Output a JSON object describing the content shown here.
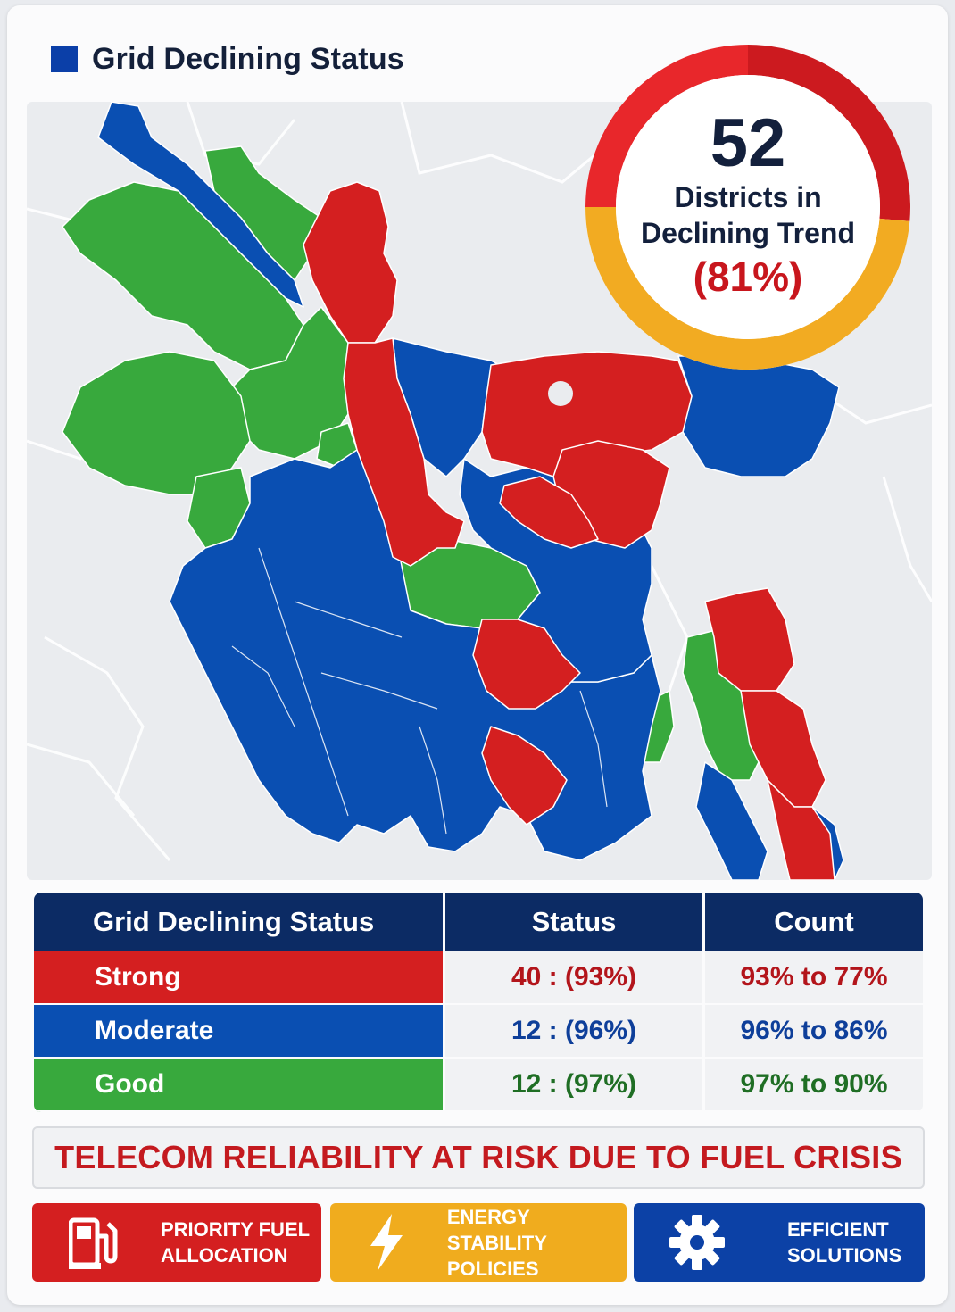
{
  "header": {
    "title": "Grid Declining Status",
    "square_color": "#0b3fa8"
  },
  "summary": {
    "count": "52",
    "label_line1": "Districts in",
    "label_line2": "Declining Trend",
    "percent": "(81%)",
    "ring_colors": [
      "#e8272b",
      "#cc1a1f",
      "#f2ab22"
    ]
  },
  "map": {
    "colors": {
      "strong": "#d41f20",
      "moderate": "#0a4fb2",
      "good": "#38a93d",
      "background": "#eaecef"
    }
  },
  "table": {
    "headers": [
      "Grid Declining Status",
      "Status",
      "Count"
    ],
    "rows": [
      {
        "name": "Strong",
        "status": "40 : (93%)",
        "count": "93% to 77%",
        "color": "#d41f20"
      },
      {
        "name": "Moderate",
        "status": "12 : (96%)",
        "count": "96% to 86%",
        "color": "#0a4fb2"
      },
      {
        "name": "Good",
        "status": "12 : (97%)",
        "count": "97% to 90%",
        "color": "#38a93d"
      }
    ]
  },
  "banner": {
    "text": "TELECOM RELIABILITY AT RISK DUE TO FUEL CRISIS"
  },
  "actions": [
    {
      "line1": "PRIORITY FUEL",
      "line2": "ALLOCATION",
      "icon": "fuel-pump-icon",
      "color": "#d41f20"
    },
    {
      "line1": "ENERGY STABILITY",
      "line2": "POLICIES",
      "icon": "lightning-bolt-icon",
      "color": "#f0ac1e"
    },
    {
      "line1": "EFFICIENT",
      "line2": "SOLUTIONS",
      "icon": "gear-icon",
      "color": "#0c41a6"
    }
  ]
}
